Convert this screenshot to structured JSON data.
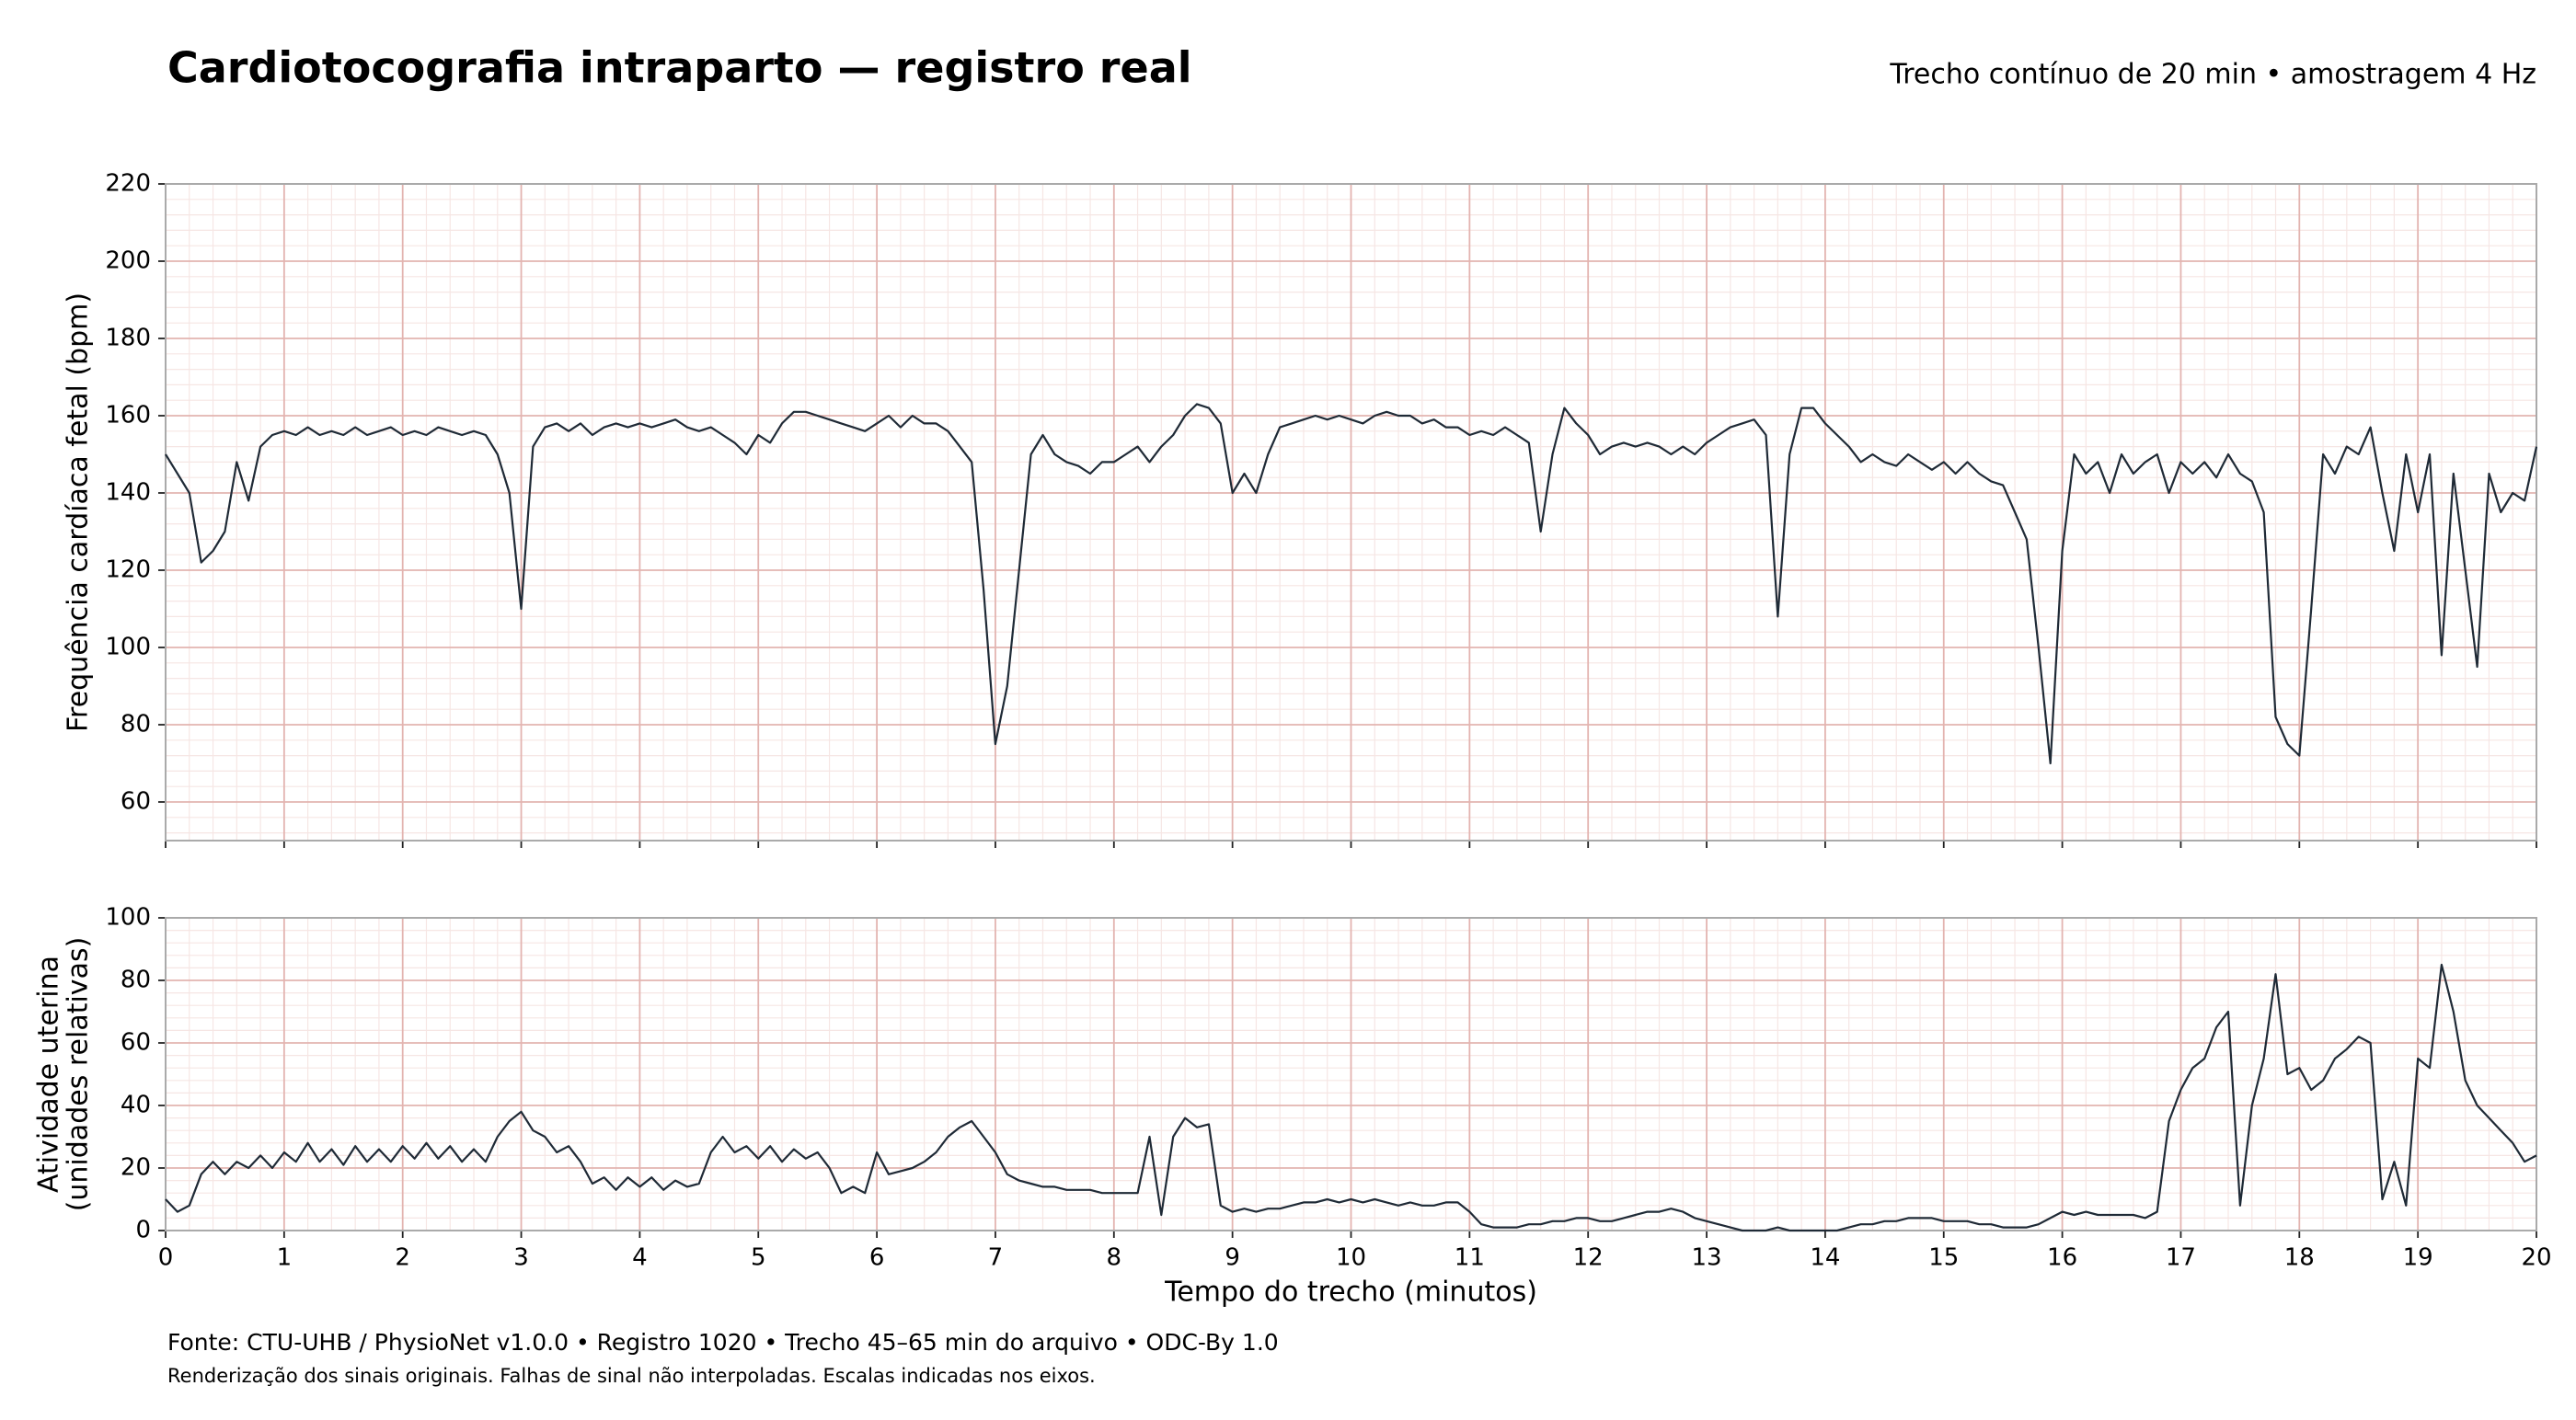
{
  "title": "Cardiotocografia intraparto — registro real",
  "subtitle": "Trecho contínuo de 20 min • amostragem 4 Hz",
  "footer": [
    "Fonte: CTU-UHB / PhysioNet v1.0.0 • Registro 1020 • Trecho 45–65 min do arquivo • ODC-By 1.0",
    "Renderização dos sinais originais. Falhas de sinal não interpoladas. Escalas indicadas nos eixos."
  ],
  "chart_data": [
    {
      "type": "line",
      "y_label": [
        "Frequência cardíaca fetal (bpm)"
      ],
      "xlim": [
        0,
        20
      ],
      "xticks": [
        0,
        1,
        2,
        3,
        4,
        5,
        6,
        7,
        8,
        9,
        10,
        11,
        12,
        13,
        14,
        15,
        16,
        17,
        18,
        19,
        20
      ],
      "ylim": [
        50,
        220
      ],
      "yticks": [
        60,
        80,
        100,
        120,
        140,
        160,
        180,
        200,
        220
      ],
      "grid": true,
      "x": [
        0,
        0.1,
        0.2,
        0.3,
        0.4,
        0.5,
        0.6,
        0.7,
        0.8,
        0.9,
        1,
        1.1,
        1.2,
        1.3,
        1.4,
        1.5,
        1.6,
        1.7,
        1.8,
        1.9,
        2,
        2.1,
        2.2,
        2.3,
        2.4,
        2.5,
        2.6,
        2.7,
        2.8,
        2.9,
        3,
        3.1,
        3.2,
        3.3,
        3.4,
        3.5,
        3.6,
        3.7,
        3.8,
        3.9,
        4,
        4.1,
        4.2,
        4.3,
        4.4,
        4.5,
        4.6,
        4.7,
        4.8,
        4.9,
        5,
        5.1,
        5.2,
        5.3,
        5.4,
        5.5,
        5.6,
        5.7,
        5.8,
        5.9,
        6,
        6.1,
        6.2,
        6.3,
        6.4,
        6.5,
        6.6,
        6.7,
        6.8,
        6.9,
        7,
        7.1,
        7.2,
        7.3,
        7.4,
        7.5,
        7.6,
        7.7,
        7.8,
        7.9,
        8,
        8.1,
        8.2,
        8.3,
        8.4,
        8.5,
        8.6,
        8.7,
        8.8,
        8.9,
        9,
        9.1,
        9.2,
        9.3,
        9.4,
        9.5,
        9.6,
        9.7,
        9.8,
        9.9,
        10,
        10.1,
        10.2,
        10.3,
        10.4,
        10.5,
        10.6,
        10.7,
        10.8,
        10.9,
        11,
        11.1,
        11.2,
        11.3,
        11.4,
        11.5,
        11.6,
        11.7,
        11.8,
        11.9,
        12,
        12.1,
        12.2,
        12.3,
        12.4,
        12.5,
        12.6,
        12.7,
        12.8,
        12.9,
        13,
        13.1,
        13.2,
        13.3,
        13.4,
        13.5,
        13.6,
        13.7,
        13.8,
        13.9,
        14,
        14.1,
        14.2,
        14.3,
        14.4,
        14.5,
        14.6,
        14.7,
        14.8,
        14.9,
        15,
        15.1,
        15.2,
        15.3,
        15.4,
        15.5,
        15.6,
        15.7,
        15.8,
        15.9,
        16,
        16.1,
        16.2,
        16.3,
        16.4,
        16.5,
        16.6,
        16.7,
        16.8,
        16.9,
        17,
        17.1,
        17.2,
        17.3,
        17.4,
        17.5,
        17.6,
        17.7,
        17.8,
        17.9,
        18,
        18.1,
        18.2,
        18.3,
        18.4,
        18.5,
        18.6,
        18.7,
        18.8,
        18.9,
        19,
        19.1,
        19.2,
        19.3,
        19.4,
        19.5,
        19.6,
        19.7,
        19.8,
        19.9,
        20
      ],
      "series": [
        {
          "color": "#1f2a36",
          "values": [
            150,
            145,
            140,
            122,
            125,
            130,
            148,
            138,
            152,
            155,
            156,
            155,
            157,
            155,
            156,
            155,
            157,
            155,
            156,
            157,
            155,
            156,
            155,
            157,
            156,
            155,
            156,
            155,
            150,
            140,
            110,
            152,
            157,
            158,
            156,
            158,
            155,
            157,
            158,
            157,
            158,
            157,
            158,
            159,
            157,
            156,
            157,
            155,
            153,
            150,
            155,
            153,
            158,
            161,
            161,
            160,
            159,
            158,
            157,
            156,
            158,
            160,
            157,
            160,
            158,
            158,
            156,
            152,
            148,
            115,
            75,
            90,
            120,
            150,
            155,
            150,
            148,
            147,
            145,
            148,
            148,
            150,
            152,
            148,
            152,
            155,
            160,
            163,
            162,
            158,
            140,
            145,
            140,
            150,
            157,
            158,
            159,
            160,
            159,
            160,
            159,
            158,
            160,
            161,
            160,
            160,
            158,
            159,
            157,
            157,
            155,
            156,
            155,
            157,
            155,
            153,
            130,
            150,
            162,
            158,
            155,
            150,
            152,
            153,
            152,
            153,
            152,
            150,
            152,
            150,
            153,
            155,
            157,
            158,
            159,
            155,
            108,
            150,
            162,
            162,
            158,
            155,
            152,
            148,
            150,
            148,
            147,
            150,
            148,
            146,
            148,
            145,
            148,
            145,
            143,
            142,
            135,
            128,
            100,
            70,
            125,
            150,
            145,
            148,
            140,
            150,
            145,
            148,
            150,
            140,
            148,
            145,
            148,
            144,
            150,
            145,
            143,
            135,
            82,
            75,
            72,
            110,
            150,
            145,
            152,
            150,
            157,
            140,
            125,
            150,
            135,
            150,
            98,
            145,
            120,
            95,
            145,
            135,
            140,
            138,
            152
          ]
        }
      ]
    },
    {
      "type": "line",
      "y_label": [
        "Atividade uterina",
        "(unidades relativas)"
      ],
      "x_label": "Tempo do trecho (minutos)",
      "xlim": [
        0,
        20
      ],
      "xticks": [
        0,
        1,
        2,
        3,
        4,
        5,
        6,
        7,
        8,
        9,
        10,
        11,
        12,
        13,
        14,
        15,
        16,
        17,
        18,
        19,
        20
      ],
      "ylim": [
        0,
        100
      ],
      "yticks": [
        0,
        20,
        40,
        60,
        80,
        100
      ],
      "grid": true,
      "x": [
        0,
        0.1,
        0.2,
        0.3,
        0.4,
        0.5,
        0.6,
        0.7,
        0.8,
        0.9,
        1,
        1.1,
        1.2,
        1.3,
        1.4,
        1.5,
        1.6,
        1.7,
        1.8,
        1.9,
        2,
        2.1,
        2.2,
        2.3,
        2.4,
        2.5,
        2.6,
        2.7,
        2.8,
        2.9,
        3,
        3.1,
        3.2,
        3.3,
        3.4,
        3.5,
        3.6,
        3.7,
        3.8,
        3.9,
        4,
        4.1,
        4.2,
        4.3,
        4.4,
        4.5,
        4.6,
        4.7,
        4.8,
        4.9,
        5,
        5.1,
        5.2,
        5.3,
        5.4,
        5.5,
        5.6,
        5.7,
        5.8,
        5.9,
        6,
        6.1,
        6.2,
        6.3,
        6.4,
        6.5,
        6.6,
        6.7,
        6.8,
        6.9,
        7,
        7.1,
        7.2,
        7.3,
        7.4,
        7.5,
        7.6,
        7.7,
        7.8,
        7.9,
        8,
        8.1,
        8.2,
        8.3,
        8.4,
        8.5,
        8.6,
        8.7,
        8.8,
        8.9,
        9,
        9.1,
        9.2,
        9.3,
        9.4,
        9.5,
        9.6,
        9.7,
        9.8,
        9.9,
        10,
        10.1,
        10.2,
        10.3,
        10.4,
        10.5,
        10.6,
        10.7,
        10.8,
        10.9,
        11,
        11.1,
        11.2,
        11.3,
        11.4,
        11.5,
        11.6,
        11.7,
        11.8,
        11.9,
        12,
        12.1,
        12.2,
        12.3,
        12.4,
        12.5,
        12.6,
        12.7,
        12.8,
        12.9,
        13,
        13.1,
        13.2,
        13.3,
        13.4,
        13.5,
        13.6,
        13.7,
        13.8,
        13.9,
        14,
        14.1,
        14.2,
        14.3,
        14.4,
        14.5,
        14.6,
        14.7,
        14.8,
        14.9,
        15,
        15.1,
        15.2,
        15.3,
        15.4,
        15.5,
        15.6,
        15.7,
        15.8,
        15.9,
        16,
        16.1,
        16.2,
        16.3,
        16.4,
        16.5,
        16.6,
        16.7,
        16.8,
        16.9,
        17,
        17.1,
        17.2,
        17.3,
        17.4,
        17.5,
        17.6,
        17.7,
        17.8,
        17.9,
        18,
        18.1,
        18.2,
        18.3,
        18.4,
        18.5,
        18.6,
        18.7,
        18.8,
        18.9,
        19,
        19.1,
        19.2,
        19.3,
        19.4,
        19.5,
        19.6,
        19.7,
        19.8,
        19.9,
        20
      ],
      "series": [
        {
          "color": "#1f2a36",
          "values": [
            10,
            6,
            8,
            18,
            22,
            18,
            22,
            20,
            24,
            20,
            25,
            22,
            28,
            22,
            26,
            21,
            27,
            22,
            26,
            22,
            27,
            23,
            28,
            23,
            27,
            22,
            26,
            22,
            30,
            35,
            38,
            32,
            30,
            25,
            27,
            22,
            15,
            17,
            13,
            17,
            14,
            17,
            13,
            16,
            14,
            15,
            25,
            30,
            25,
            27,
            23,
            27,
            22,
            26,
            23,
            25,
            20,
            12,
            14,
            12,
            25,
            18,
            19,
            20,
            22,
            25,
            30,
            33,
            35,
            30,
            25,
            18,
            16,
            15,
            14,
            14,
            13,
            13,
            13,
            12,
            12,
            12,
            12,
            30,
            5,
            30,
            36,
            33,
            34,
            8,
            6,
            7,
            6,
            7,
            7,
            8,
            9,
            9,
            10,
            9,
            10,
            9,
            10,
            9,
            8,
            9,
            8,
            8,
            9,
            9,
            6,
            2,
            1,
            1,
            1,
            2,
            2,
            3,
            3,
            4,
            4,
            3,
            3,
            4,
            5,
            6,
            6,
            7,
            6,
            4,
            3,
            2,
            1,
            0,
            0,
            0,
            1,
            0,
            0,
            0,
            0,
            0,
            1,
            2,
            2,
            3,
            3,
            4,
            4,
            4,
            3,
            3,
            3,
            2,
            2,
            1,
            1,
            1,
            2,
            4,
            6,
            5,
            6,
            5,
            5,
            5,
            5,
            4,
            6,
            35,
            45,
            52,
            55,
            65,
            70,
            8,
            40,
            55,
            82,
            50,
            52,
            45,
            48,
            55,
            58,
            62,
            60,
            10,
            22,
            8,
            55,
            52,
            85,
            70,
            48,
            40,
            36,
            32,
            28,
            22,
            24
          ]
        }
      ]
    }
  ]
}
